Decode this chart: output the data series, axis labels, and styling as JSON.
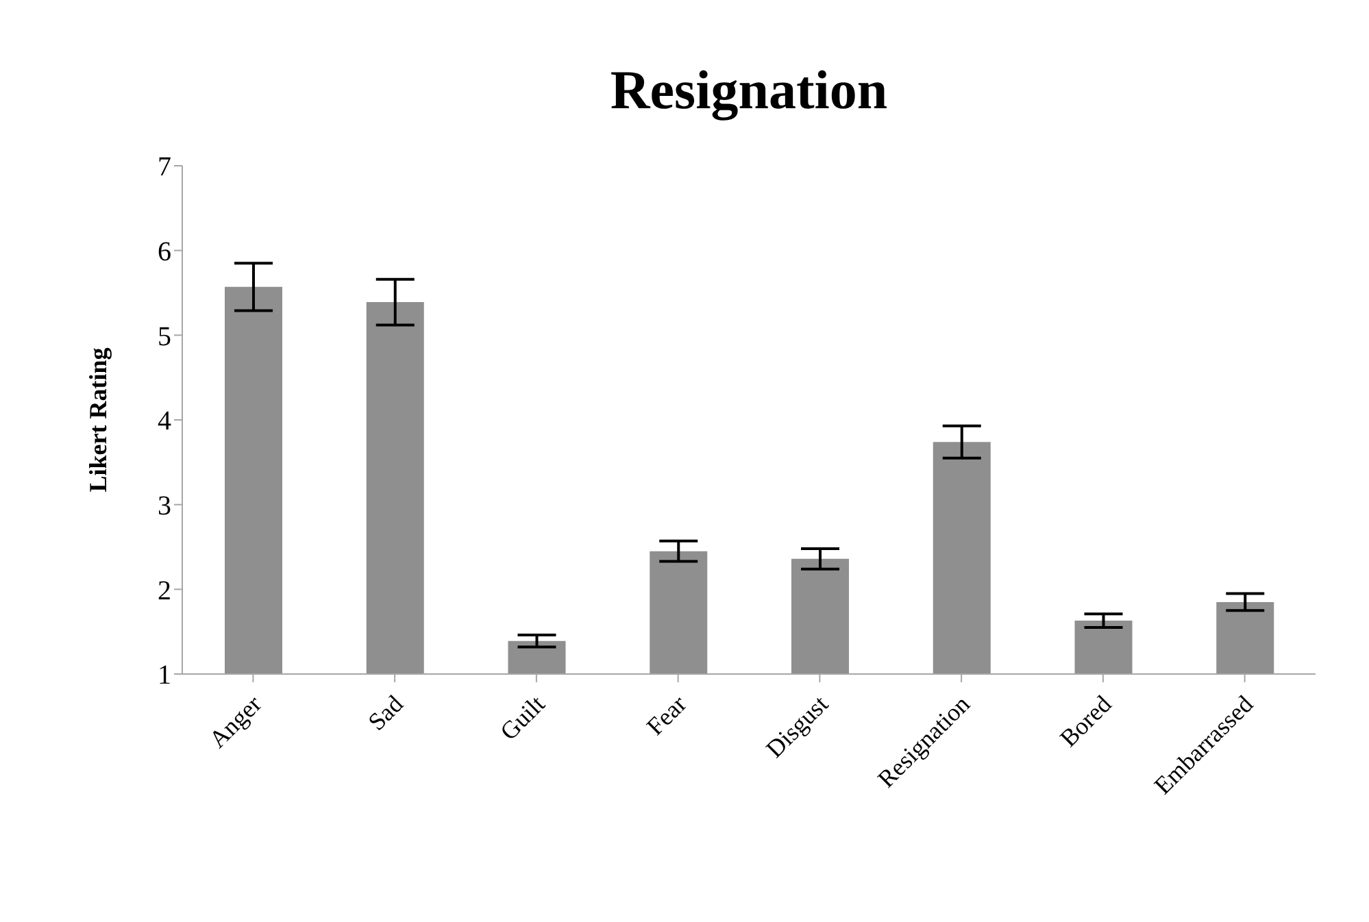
{
  "chart_data": {
    "type": "bar",
    "title": "Resignation",
    "ylabel": "Likert Rating",
    "categories": [
      "Anger",
      "Sad",
      "Guilt",
      "Fear",
      "Disgust",
      "Resignation",
      "Bored",
      "Embarrassed"
    ],
    "values": [
      5.57,
      5.39,
      1.39,
      2.45,
      2.36,
      3.74,
      1.63,
      1.85
    ],
    "errors": [
      0.28,
      0.27,
      0.07,
      0.12,
      0.12,
      0.19,
      0.08,
      0.1
    ],
    "color": "#8f8f8f",
    "ylim": [
      1,
      7
    ],
    "yticks": [
      1,
      2,
      3,
      4,
      5,
      6,
      7
    ],
    "grid": false,
    "legend": false
  }
}
